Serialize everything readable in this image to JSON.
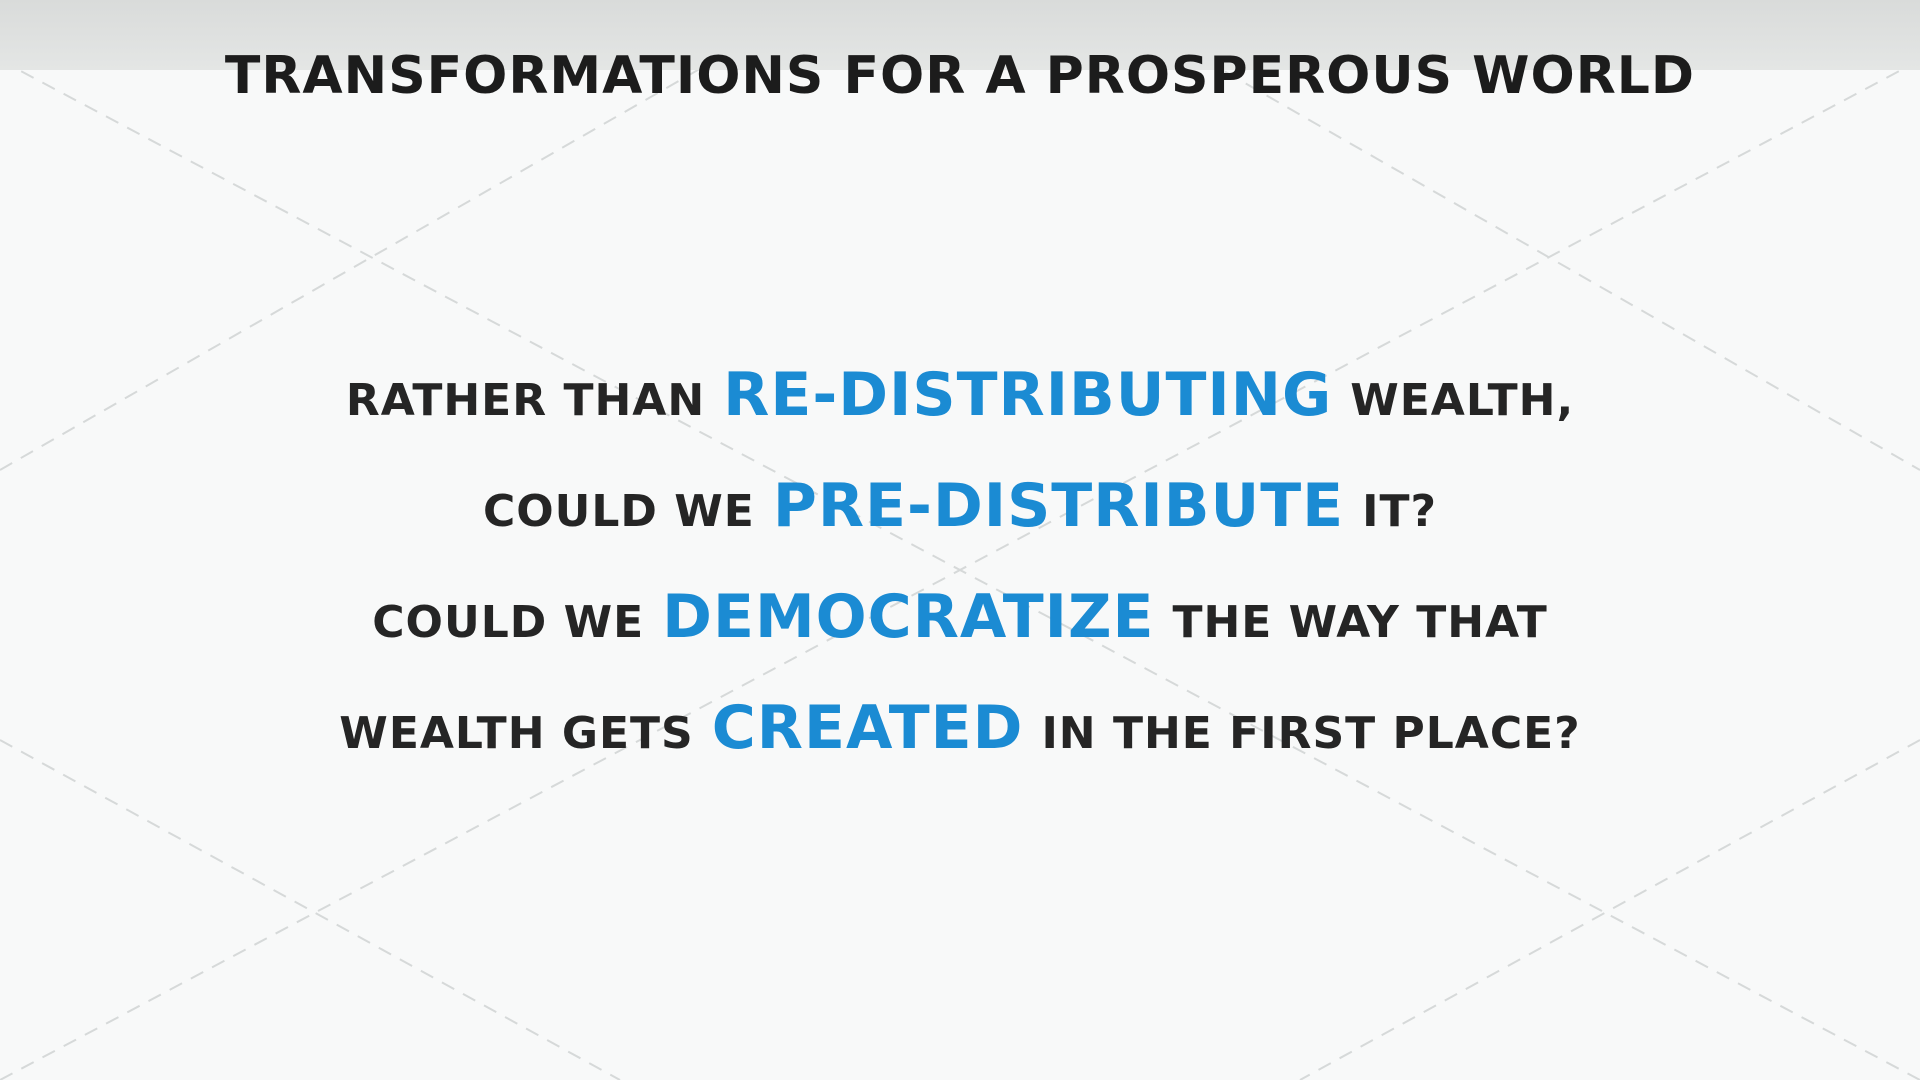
{
  "title": "TRANSFORMATIONS FOR A PROSPEROUS WORLD",
  "lines": [
    {
      "before": "RATHER THAN",
      "emphasis": "RE-DISTRIBUTING",
      "after": "WEALTH,"
    },
    {
      "before": "COULD WE",
      "emphasis": "PRE-DISTRIBUTE",
      "after": "IT?"
    },
    {
      "before": "COULD WE",
      "emphasis": "DEMOCRATIZE",
      "after": "THE WAY THAT"
    },
    {
      "before": "WEALTH GETS",
      "emphasis": "CREATED",
      "after": "IN THE FIRST PLACE?"
    }
  ]
}
